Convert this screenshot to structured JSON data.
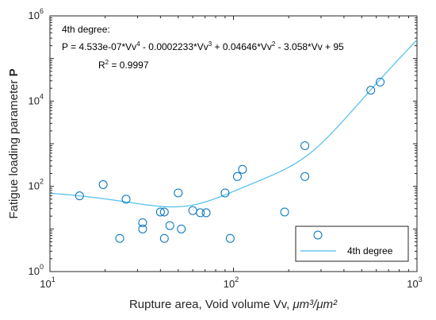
{
  "chart_data": {
    "type": "scatter",
    "xlabel": {
      "main": "Rupture area, Void volume Vv, ",
      "unit": "μm³/μm²"
    },
    "ylabel": {
      "main": "Fatigue loading parameter ",
      "symbol": "P"
    },
    "x_scale": "log",
    "y_scale": "log",
    "xlim": [
      10,
      1000
    ],
    "ylim": [
      1,
      1000000
    ],
    "x_ticks": [
      {
        "base": "10",
        "exp": "1",
        "value": 10
      },
      {
        "base": "10",
        "exp": "2",
        "value": 100
      },
      {
        "base": "10",
        "exp": "3",
        "value": 1000
      }
    ],
    "y_ticks": [
      {
        "base": "10",
        "exp": "0",
        "value": 1
      },
      {
        "base": "10",
        "exp": "2",
        "value": 100
      },
      {
        "base": "10",
        "exp": "4",
        "value": 10000
      },
      {
        "base": "10",
        "exp": "6",
        "value": 1000000
      }
    ],
    "grid": false,
    "legend_position": "bottom-right",
    "series": [
      {
        "kind": "scatter",
        "name": "",
        "color": "#0072BD",
        "points": [
          {
            "x": 14.5,
            "y": 60
          },
          {
            "x": 19.5,
            "y": 110
          },
          {
            "x": 24,
            "y": 6
          },
          {
            "x": 26,
            "y": 50
          },
          {
            "x": 32,
            "y": 14
          },
          {
            "x": 32,
            "y": 10
          },
          {
            "x": 40,
            "y": 25
          },
          {
            "x": 42,
            "y": 25
          },
          {
            "x": 42,
            "y": 6
          },
          {
            "x": 45,
            "y": 12
          },
          {
            "x": 50,
            "y": 70
          },
          {
            "x": 52,
            "y": 10
          },
          {
            "x": 60,
            "y": 27
          },
          {
            "x": 66,
            "y": 24
          },
          {
            "x": 71,
            "y": 24
          },
          {
            "x": 90,
            "y": 70
          },
          {
            "x": 96,
            "y": 6
          },
          {
            "x": 105,
            "y": 170
          },
          {
            "x": 112,
            "y": 250
          },
          {
            "x": 190,
            "y": 25
          },
          {
            "x": 245,
            "y": 900
          },
          {
            "x": 245,
            "y": 170
          },
          {
            "x": 560,
            "y": 18000
          },
          {
            "x": 630,
            "y": 28000
          }
        ]
      },
      {
        "kind": "fit",
        "name": "4th degree",
        "color": "#4DBEEE",
        "coefficients": [
          4.533e-07,
          -0.0002233,
          0.04646,
          -3.058,
          95
        ]
      }
    ],
    "annotation": {
      "heading": "4th degree:",
      "equation_parts": [
        {
          "t": "P = 4.533e-07*Vv"
        },
        {
          "t": "4",
          "sup": true
        },
        {
          "t": " - 0.0002233*Vv"
        },
        {
          "t": "3",
          "sup": true
        },
        {
          "t": " + 0.04646*Vv"
        },
        {
          "t": "2",
          "sup": true
        },
        {
          "t": " - 3.058*Vv + 95"
        }
      ],
      "r2_parts": [
        {
          "t": "R"
        },
        {
          "t": "2",
          "sup": true
        },
        {
          "t": " = 0.9997"
        }
      ]
    }
  }
}
